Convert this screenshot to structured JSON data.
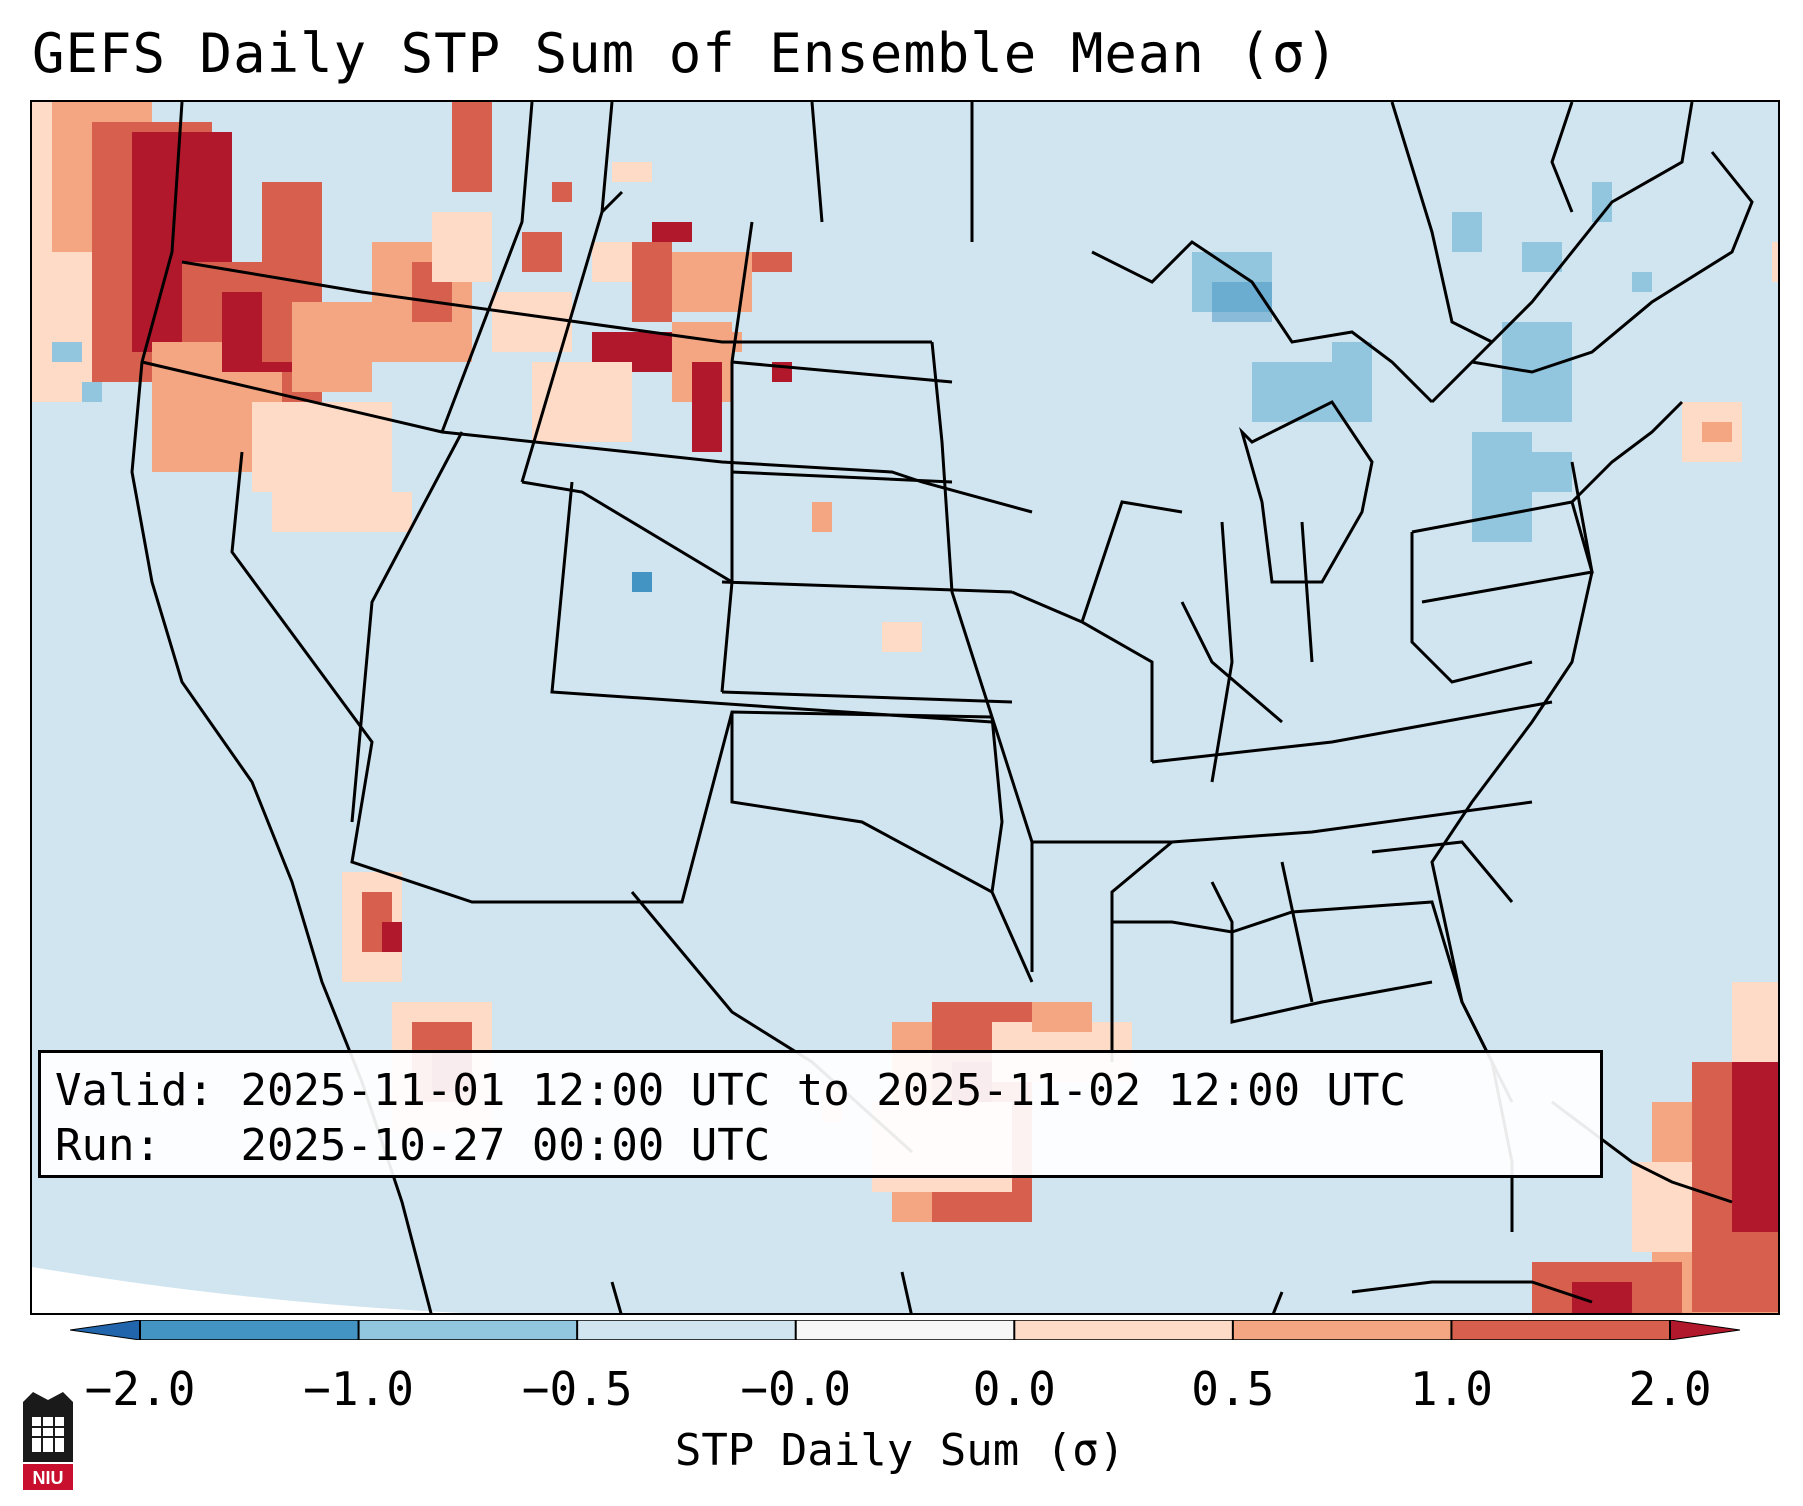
{
  "title": "GEFS Daily STP Sum of Ensemble Mean (σ)",
  "info": {
    "valid_label": "Valid:",
    "valid_value": "2025-11-01 12:00 UTC to 2025-11-02 12:00 UTC",
    "run_label": "Run:  ",
    "run_value": "2025-10-27 00:00 UTC"
  },
  "colorbar": {
    "title": "STP Daily Sum (σ)",
    "tick_labels": [
      "−2.0",
      "−1.0",
      "−0.5",
      "−0.0",
      "0.0",
      "0.5",
      "1.0",
      "2.0"
    ],
    "bin_colors": [
      "#2166ac",
      "#4393c3",
      "#92c5de",
      "#d1e5f0",
      "#f7f7f7",
      "#fddbc7",
      "#f4a582",
      "#d6604d",
      "#b2182b"
    ]
  },
  "map": {
    "projection": "CONUS Lambert",
    "background_color": "#d1e5f0",
    "anomaly_regions": [
      {
        "name": "Pacific Northwest",
        "level": "strong-positive"
      },
      {
        "name": "Northern Rockies / Montana",
        "level": "positive"
      },
      {
        "name": "Western Dakotas / Wyoming",
        "level": "positive"
      },
      {
        "name": "Gulf Coast / Texas",
        "level": "positive"
      },
      {
        "name": "Baja California / Gulf of California",
        "level": "positive"
      },
      {
        "name": "Western Atlantic near Bahamas",
        "level": "strong-positive"
      },
      {
        "name": "Great Lakes",
        "level": "weak-negative"
      },
      {
        "name": "Southern Quebec / New York",
        "level": "weak-negative"
      }
    ]
  },
  "logo": {
    "text": "NIU"
  }
}
